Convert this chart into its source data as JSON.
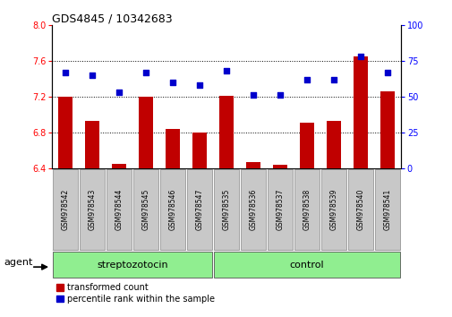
{
  "title": "GDS4845 / 10342683",
  "samples": [
    "GSM978542",
    "GSM978543",
    "GSM978544",
    "GSM978545",
    "GSM978546",
    "GSM978547",
    "GSM978535",
    "GSM978536",
    "GSM978537",
    "GSM978538",
    "GSM978539",
    "GSM978540",
    "GSM978541"
  ],
  "red_values": [
    7.2,
    6.93,
    6.45,
    7.2,
    6.84,
    6.8,
    7.21,
    6.47,
    6.44,
    6.91,
    6.93,
    7.65,
    7.26
  ],
  "blue_values": [
    67,
    65,
    53,
    67,
    60,
    58,
    68,
    51,
    51,
    62,
    62,
    78,
    67
  ],
  "ylim_left": [
    6.4,
    8.0
  ],
  "ylim_right": [
    0,
    100
  ],
  "yticks_left": [
    6.4,
    6.8,
    7.2,
    7.6,
    8.0
  ],
  "yticks_right": [
    0,
    25,
    50,
    75,
    100
  ],
  "red_color": "#C00000",
  "blue_color": "#0000CC",
  "group_bg": "#90EE90",
  "label_bg": "#C8C8C8",
  "title_fontsize": 9,
  "tick_fontsize": 7,
  "label_fontsize": 5.5,
  "group_fontsize": 8,
  "legend_fontsize": 7,
  "agent_fontsize": 8,
  "n_strep": 6,
  "n_ctrl": 7
}
